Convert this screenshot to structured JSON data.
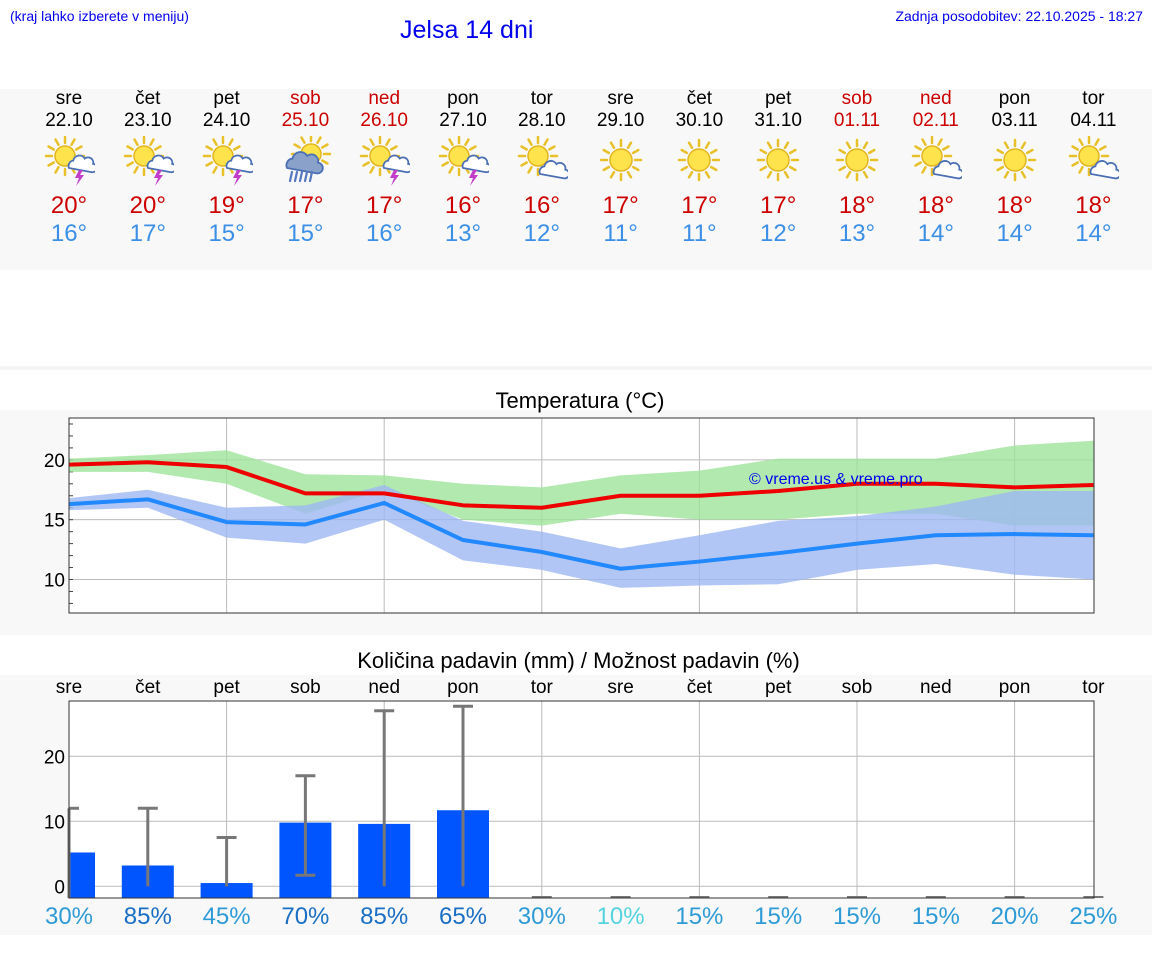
{
  "header": {
    "note": "(kraj lahko izberete v meniju)",
    "title": "Jelsa 14 dni",
    "updated": "Zadnja posodobitev: 22.10.2025 - 18:27"
  },
  "days": [
    {
      "name": "sre",
      "date": "22.10",
      "weekend": false,
      "icon": "sun-thunder-icon",
      "tmax": "20°",
      "tmin": "16°"
    },
    {
      "name": "čet",
      "date": "23.10",
      "weekend": false,
      "icon": "sun-thunder-icon",
      "tmax": "20°",
      "tmin": "17°"
    },
    {
      "name": "pet",
      "date": "24.10",
      "weekend": false,
      "icon": "sun-thunder-icon",
      "tmax": "19°",
      "tmin": "15°"
    },
    {
      "name": "sob",
      "date": "25.10",
      "weekend": true,
      "icon": "sun-rain-icon",
      "tmax": "17°",
      "tmin": "15°"
    },
    {
      "name": "ned",
      "date": "26.10",
      "weekend": true,
      "icon": "sun-thunder-icon",
      "tmax": "17°",
      "tmin": "16°"
    },
    {
      "name": "pon",
      "date": "27.10",
      "weekend": false,
      "icon": "sun-thunder-icon",
      "tmax": "16°",
      "tmin": "13°"
    },
    {
      "name": "tor",
      "date": "28.10",
      "weekend": false,
      "icon": "sun-cloud-icon",
      "tmax": "16°",
      "tmin": "12°"
    },
    {
      "name": "sre",
      "date": "29.10",
      "weekend": false,
      "icon": "sun-icon",
      "tmax": "17°",
      "tmin": "11°"
    },
    {
      "name": "čet",
      "date": "30.10",
      "weekend": false,
      "icon": "sun-icon",
      "tmax": "17°",
      "tmin": "11°"
    },
    {
      "name": "pet",
      "date": "31.10",
      "weekend": false,
      "icon": "sun-icon",
      "tmax": "17°",
      "tmin": "12°"
    },
    {
      "name": "sob",
      "date": "01.11",
      "weekend": true,
      "icon": "sun-icon",
      "tmax": "18°",
      "tmin": "13°"
    },
    {
      "name": "ned",
      "date": "02.11",
      "weekend": true,
      "icon": "sun-cloud-icon",
      "tmax": "18°",
      "tmin": "14°"
    },
    {
      "name": "pon",
      "date": "03.11",
      "weekend": false,
      "icon": "sun-icon",
      "tmax": "18°",
      "tmin": "14°"
    },
    {
      "name": "tor",
      "date": "04.11",
      "weekend": false,
      "icon": "sun-cloud-icon",
      "tmax": "18°",
      "tmin": "14°"
    }
  ],
  "colors": {
    "max_line": "#ee0000",
    "min_line": "#2288ff",
    "max_band": "#9ee39a",
    "min_band": "#9fb8f3",
    "bar": "#0055ff",
    "whisker": "#777777",
    "percent_dark": "#1a6fc4",
    "percent_mid": "#2f9bd6",
    "percent_light": "#55d4e0"
  },
  "chart_data": [
    {
      "type": "line",
      "title": "Temperatura (°C)",
      "xlabel": "",
      "ylabel": "",
      "watermark": "© vreme.us & vreme.pro",
      "x": [
        0,
        1,
        2,
        3,
        4,
        5,
        6,
        7,
        8,
        9,
        10,
        11,
        12,
        13
      ],
      "ylim": [
        7.2,
        23.5
      ],
      "yticks": [
        10,
        15,
        20
      ],
      "series": [
        {
          "name": "max",
          "values": [
            19.6,
            19.8,
            19.4,
            17.2,
            17.2,
            16.2,
            16.0,
            17.0,
            17.0,
            17.4,
            18.0,
            18.0,
            17.7,
            17.9
          ]
        },
        {
          "name": "max_band_low",
          "values": [
            19.0,
            19.0,
            18.0,
            15.5,
            17.5,
            15.0,
            14.5,
            15.5,
            15.0,
            15.0,
            15.5,
            15.5,
            14.5,
            14.5
          ]
        },
        {
          "name": "max_band_high",
          "values": [
            20.1,
            20.4,
            20.8,
            18.8,
            18.7,
            18.0,
            17.7,
            18.7,
            19.1,
            20.1,
            20.1,
            20.1,
            21.2,
            21.6
          ]
        },
        {
          "name": "min",
          "values": [
            16.3,
            16.7,
            14.8,
            14.6,
            16.4,
            13.3,
            12.3,
            10.9,
            11.5,
            12.2,
            13.0,
            13.7,
            13.8,
            13.7
          ]
        },
        {
          "name": "min_band_low",
          "values": [
            15.8,
            16.0,
            13.5,
            13.0,
            15.0,
            11.6,
            10.8,
            9.3,
            9.5,
            9.6,
            10.8,
            11.3,
            10.4,
            10.0
          ]
        },
        {
          "name": "min_band_high",
          "values": [
            16.8,
            17.5,
            16.0,
            16.2,
            17.9,
            14.9,
            14.0,
            12.6,
            13.7,
            14.9,
            15.3,
            16.1,
            17.4,
            17.4
          ]
        }
      ]
    },
    {
      "type": "bar",
      "title": "Količina padavin (mm) / Možnost padavin (%)",
      "xlabel": "",
      "ylabel": "",
      "categories": [
        "sre",
        "čet",
        "pet",
        "sob",
        "ned",
        "pon",
        "tor",
        "sre",
        "čet",
        "pet",
        "sob",
        "ned",
        "pon",
        "tor"
      ],
      "ylim": [
        -1.8,
        28.5
      ],
      "yticks": [
        0,
        10,
        20
      ],
      "values": [
        5.2,
        3.2,
        0.5,
        9.8,
        9.6,
        11.7,
        0,
        0,
        0,
        0,
        0,
        0,
        0,
        0
      ],
      "error_low": [
        null,
        0,
        0,
        1.7,
        0,
        0,
        0,
        0,
        0,
        0,
        0,
        0,
        0,
        0
      ],
      "error_high": [
        12.0,
        12.0,
        7.5,
        17.0,
        27.0,
        27.7,
        0,
        0,
        0,
        0,
        0,
        0,
        0,
        0
      ],
      "probabilities": [
        "30%",
        "85%",
        "45%",
        "70%",
        "85%",
        "65%",
        "30%",
        "10%",
        "15%",
        "15%",
        "15%",
        "15%",
        "20%",
        "25%"
      ],
      "probability_values": [
        30,
        85,
        45,
        70,
        85,
        65,
        30,
        10,
        15,
        15,
        15,
        15,
        20,
        25
      ]
    }
  ]
}
